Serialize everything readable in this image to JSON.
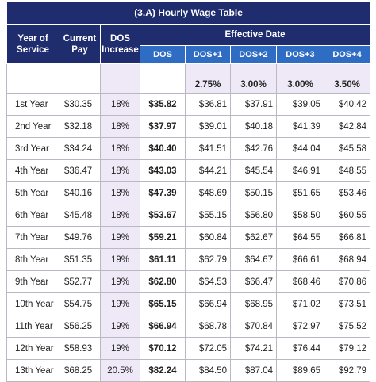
{
  "title": "(3.A) Hourly Wage Table",
  "header": {
    "year": "Year of Service",
    "pay": "Current Pay",
    "increase": "DOS Increase",
    "effective": "Effective Date",
    "steps": [
      "DOS",
      "DOS+1",
      "DOS+2",
      "DOS+3",
      "DOS+4"
    ]
  },
  "rates": [
    "2.75%",
    "3.00%",
    "3.00%",
    "3.50%"
  ],
  "rows": [
    [
      "1st Year",
      "$30.35",
      "18%",
      "$35.82",
      "$36.81",
      "$37.91",
      "$39.05",
      "$40.42"
    ],
    [
      "2nd Year",
      "$32.18",
      "18%",
      "$37.97",
      "$39.01",
      "$40.18",
      "$41.39",
      "$42.84"
    ],
    [
      "3rd Year",
      "$34.24",
      "18%",
      "$40.40",
      "$41.51",
      "$42.76",
      "$44.04",
      "$45.58"
    ],
    [
      "4th Year",
      "$36.47",
      "18%",
      "$43.03",
      "$44.21",
      "$45.54",
      "$46.91",
      "$48.55"
    ],
    [
      "5th Year",
      "$40.16",
      "18%",
      "$47.39",
      "$48.69",
      "$50.15",
      "$51.65",
      "$53.46"
    ],
    [
      "6th Year",
      "$45.48",
      "18%",
      "$53.67",
      "$55.15",
      "$56.80",
      "$58.50",
      "$60.55"
    ],
    [
      "7th Year",
      "$49.76",
      "19%",
      "$59.21",
      "$60.84",
      "$62.67",
      "$64.55",
      "$66.81"
    ],
    [
      "8th Year",
      "$51.35",
      "19%",
      "$61.11",
      "$62.79",
      "$64.67",
      "$66.61",
      "$68.94"
    ],
    [
      "9th Year",
      "$52.77",
      "19%",
      "$62.80",
      "$64.53",
      "$66.47",
      "$68.46",
      "$70.86"
    ],
    [
      "10th Year",
      "$54.75",
      "19%",
      "$65.15",
      "$66.94",
      "$68.95",
      "$71.02",
      "$73.51"
    ],
    [
      "11th Year",
      "$56.25",
      "19%",
      "$66.94",
      "$68.78",
      "$70.84",
      "$72.97",
      "$75.52"
    ],
    [
      "12th Year",
      "$58.93",
      "19%",
      "$70.12",
      "$72.05",
      "$74.21",
      "$76.44",
      "$79.12"
    ],
    [
      "13th Year",
      "$68.25",
      "20.5%",
      "$82.24",
      "$84.50",
      "$87.04",
      "$89.65",
      "$92.79"
    ]
  ]
}
